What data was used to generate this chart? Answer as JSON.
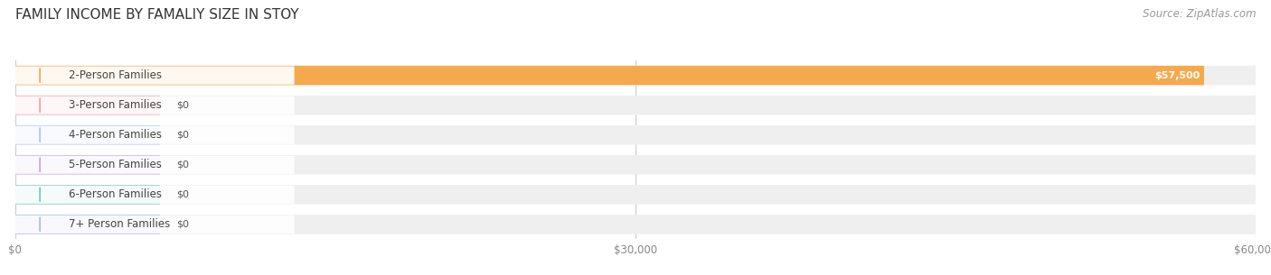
{
  "title": "FAMILY INCOME BY FAMALIY SIZE IN STOY",
  "source": "Source: ZipAtlas.com",
  "categories": [
    "2-Person Families",
    "3-Person Families",
    "4-Person Families",
    "5-Person Families",
    "6-Person Families",
    "7+ Person Families"
  ],
  "values": [
    57500,
    0,
    0,
    0,
    0,
    0
  ],
  "bar_colors": [
    "#f5a94d",
    "#f0a0a8",
    "#a8c8f0",
    "#c8a8e0",
    "#7ec8c0",
    "#b0b8e8"
  ],
  "value_labels": [
    "$57,500",
    "$0",
    "$0",
    "$0",
    "$0",
    "$0"
  ],
  "xlim": [
    0,
    60000
  ],
  "xtick_values": [
    0,
    30000,
    60000
  ],
  "xtick_labels": [
    "$0",
    "$30,000",
    "$60,000"
  ],
  "bg_color": "#ffffff",
  "bar_bg_color": "#efefef",
  "title_fontsize": 11,
  "source_fontsize": 8.5,
  "label_fontsize": 8.5,
  "value_fontsize": 8
}
